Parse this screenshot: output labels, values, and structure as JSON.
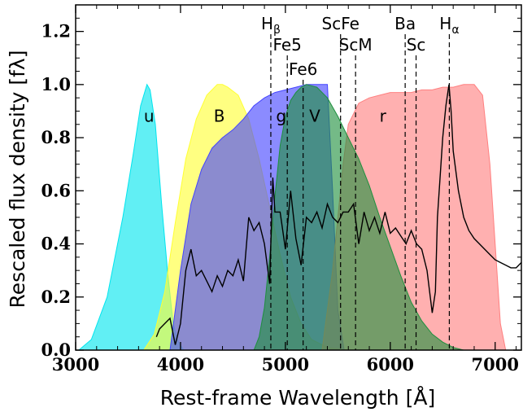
{
  "chart_data": {
    "type": "area",
    "xlabel": "Rest-frame Wavelength [Å]",
    "ylabel": "Rescaled flux density [fλ]",
    "xlim": [
      3000,
      7250
    ],
    "ylim": [
      0.0,
      1.3
    ],
    "x_ticks": [
      "3000",
      "4000",
      "5000",
      "6000",
      "7000"
    ],
    "y_ticks": [
      "0.0",
      "0.2",
      "0.4",
      "0.6",
      "0.8",
      "1.0",
      "1.2"
    ],
    "grid": false,
    "filters": [
      {
        "name": "u",
        "color": "#00e5ee",
        "x": [
          3030,
          3150,
          3300,
          3450,
          3550,
          3620,
          3680,
          3710,
          3760,
          3820,
          3880,
          3930,
          3980,
          4030
        ],
        "y": [
          0.0,
          0.04,
          0.2,
          0.5,
          0.74,
          0.92,
          1.0,
          0.98,
          0.85,
          0.55,
          0.28,
          0.1,
          0.03,
          0.0
        ]
      },
      {
        "name": "B",
        "color": "#ffff33",
        "x": [
          3650,
          3750,
          3850,
          3950,
          4050,
          4150,
          4250,
          4350,
          4400,
          4450,
          4550,
          4650,
          4750,
          4850,
          4950,
          5050,
          5150,
          5250,
          5400,
          5500,
          5600
        ],
        "y": [
          0.0,
          0.06,
          0.22,
          0.48,
          0.72,
          0.87,
          0.96,
          1.0,
          1.0,
          0.99,
          0.96,
          0.87,
          0.72,
          0.54,
          0.36,
          0.2,
          0.1,
          0.04,
          0.01,
          0.005,
          0.0
        ]
      },
      {
        "name": "g",
        "color": "#4444ff",
        "x": [
          3900,
          4000,
          4100,
          4200,
          4300,
          4400,
          4500,
          4600,
          4700,
          4800,
          4900,
          5000,
          5100,
          5200,
          5300,
          5400,
          5450,
          5500,
          5560
        ],
        "y": [
          0.0,
          0.3,
          0.55,
          0.68,
          0.76,
          0.8,
          0.83,
          0.87,
          0.92,
          0.95,
          0.97,
          0.98,
          0.99,
          1.0,
          1.0,
          1.0,
          0.6,
          0.15,
          0.0
        ]
      },
      {
        "name": "r",
        "color": "#ff8080",
        "x": [
          5350,
          5450,
          5550,
          5600,
          5700,
          5800,
          5900,
          6000,
          6100,
          6200,
          6300,
          6400,
          6500,
          6600,
          6700,
          6800,
          6880,
          6950,
          7050,
          7100
        ],
        "y": [
          0.0,
          0.3,
          0.7,
          0.85,
          0.93,
          0.95,
          0.96,
          0.97,
          0.97,
          0.97,
          0.98,
          0.98,
          0.99,
          0.99,
          1.0,
          1.0,
          0.96,
          0.7,
          0.1,
          0.0
        ]
      },
      {
        "name": "V",
        "color": "#1e8f3e",
        "x": [
          4700,
          4750,
          4800,
          4850,
          4900,
          4950,
          5000,
          5050,
          5100,
          5150,
          5200,
          5300,
          5400,
          5500,
          5600,
          5700,
          5800,
          5900,
          6000,
          6100,
          6200,
          6300,
          6400,
          6500,
          6600,
          6700
        ],
        "y": [
          0.0,
          0.05,
          0.16,
          0.35,
          0.58,
          0.77,
          0.88,
          0.94,
          0.97,
          0.99,
          1.0,
          0.99,
          0.95,
          0.88,
          0.8,
          0.72,
          0.62,
          0.5,
          0.39,
          0.28,
          0.18,
          0.11,
          0.06,
          0.03,
          0.01,
          0.0
        ]
      }
    ],
    "spectrum": {
      "name": "spectrum",
      "color": "#000000",
      "x": [
        3770,
        3800,
        3850,
        3900,
        3950,
        4000,
        4050,
        4100,
        4150,
        4200,
        4250,
        4300,
        4350,
        4400,
        4450,
        4500,
        4550,
        4600,
        4650,
        4700,
        4750,
        4800,
        4850,
        4880,
        4900,
        4950,
        5000,
        5050,
        5100,
        5150,
        5200,
        5250,
        5300,
        5350,
        5400,
        5450,
        5500,
        5550,
        5600,
        5650,
        5700,
        5750,
        5800,
        5850,
        5900,
        5950,
        6000,
        6050,
        6100,
        6150,
        6200,
        6250,
        6300,
        6350,
        6400,
        6430,
        6450,
        6500,
        6530,
        6560,
        6580,
        6600,
        6650,
        6700,
        6750,
        6800,
        6850,
        6900,
        6950,
        7000,
        7050,
        7100,
        7150,
        7200,
        7250
      ],
      "y": [
        0.05,
        0.08,
        0.1,
        0.12,
        0.02,
        0.1,
        0.3,
        0.38,
        0.28,
        0.3,
        0.26,
        0.22,
        0.28,
        0.24,
        0.3,
        0.28,
        0.34,
        0.26,
        0.5,
        0.45,
        0.48,
        0.4,
        0.25,
        0.65,
        0.52,
        0.52,
        0.38,
        0.6,
        0.42,
        0.32,
        0.5,
        0.48,
        0.52,
        0.46,
        0.55,
        0.5,
        0.48,
        0.52,
        0.52,
        0.55,
        0.4,
        0.52,
        0.45,
        0.5,
        0.44,
        0.52,
        0.44,
        0.46,
        0.43,
        0.4,
        0.45,
        0.4,
        0.38,
        0.3,
        0.14,
        0.22,
        0.5,
        0.8,
        0.92,
        1.0,
        0.9,
        0.75,
        0.6,
        0.5,
        0.45,
        0.42,
        0.4,
        0.38,
        0.36,
        0.34,
        0.33,
        0.32,
        0.31,
        0.31,
        0.33
      ]
    },
    "lines": [
      {
        "label": "H",
        "sub": "β",
        "x": 4861,
        "row": 0
      },
      {
        "label": "Fe5",
        "sub": "",
        "x": 5018,
        "row": 1
      },
      {
        "label": "Fe6",
        "sub": "",
        "x": 5169,
        "row": 2
      },
      {
        "label": "ScFe",
        "sub": "",
        "x": 5526,
        "row": 0
      },
      {
        "label": "ScM",
        "sub": "",
        "x": 5669,
        "row": 1
      },
      {
        "label": "Ba",
        "sub": "",
        "x": 6142,
        "row": 0
      },
      {
        "label": "Sc",
        "sub": "",
        "x": 6246,
        "row": 1
      },
      {
        "label": "H",
        "sub": "α",
        "x": 6563,
        "row": 0
      }
    ],
    "band_labels": [
      {
        "text": "u",
        "x": 3700,
        "y": 0.86
      },
      {
        "text": "B",
        "x": 4370,
        "y": 0.86
      },
      {
        "text": "g",
        "x": 4960,
        "y": 0.86
      },
      {
        "text": "V",
        "x": 5280,
        "y": 0.86
      },
      {
        "text": "r",
        "x": 5930,
        "y": 0.86
      }
    ]
  }
}
